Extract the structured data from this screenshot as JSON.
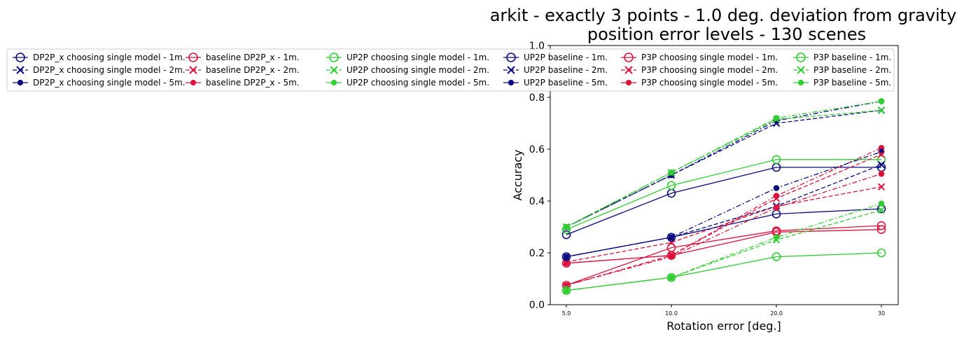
{
  "chart_data": {
    "type": "line",
    "title_line1": "arkit - exactly 3 points - 1.0 deg. deviation from gravity",
    "title_line2": "position error levels - 130 scenes",
    "xlabel": "Rotation error [deg.]",
    "ylabel": "Accuracy",
    "categories": [
      "5.0",
      "10.0",
      "20.0",
      "30"
    ],
    "ylim": [
      0.0,
      1.0
    ],
    "yticks": [
      "0.0",
      "0.2",
      "0.4",
      "0.6",
      "0.8",
      "1.0"
    ],
    "grid": false,
    "legend_position": "upper center, above axes, 6 columns",
    "colors": {
      "navy": "#0b0b80",
      "crimson": "#dc143c",
      "limegreen": "#32cd32"
    },
    "series": [
      {
        "name": "DP2P_x choosing single model - 1m.",
        "color": "#0b0b80",
        "marker": "circle",
        "dash": "solid",
        "values": [
          0.27,
          0.43,
          0.53,
          0.53
        ]
      },
      {
        "name": "DP2P_x choosing single model - 2m.",
        "color": "#0b0b80",
        "marker": "x",
        "dash": "dashed",
        "values": [
          0.3,
          0.5,
          0.7,
          0.75
        ]
      },
      {
        "name": "DP2P_x choosing single model - 5m.",
        "color": "#0b0b80",
        "marker": "dot",
        "dash": "dashdot",
        "values": [
          0.3,
          0.5,
          0.71,
          0.785
        ]
      },
      {
        "name": "baseline DP2P_x - 1m.",
        "color": "#dc143c",
        "marker": "circle",
        "dash": "solid",
        "values": [
          0.16,
          0.19,
          0.28,
          0.29
        ]
      },
      {
        "name": "baseline DP2P_x - 2m.",
        "color": "#dc143c",
        "marker": "x",
        "dash": "dashed",
        "values": [
          0.165,
          0.24,
          0.38,
          0.455
        ]
      },
      {
        "name": "baseline DP2P_x - 5m.",
        "color": "#dc143c",
        "marker": "dot",
        "dash": "dashdot",
        "values": [
          0.16,
          0.19,
          0.42,
          0.605
        ]
      },
      {
        "name": "UP2P choosing single model - 1m.",
        "color": "#32cd32",
        "marker": "circle",
        "dash": "solid",
        "values": [
          0.29,
          0.46,
          0.56,
          0.56
        ]
      },
      {
        "name": "UP2P choosing single model - 2m.",
        "color": "#32cd32",
        "marker": "x",
        "dash": "dashed",
        "values": [
          0.3,
          0.51,
          0.715,
          0.75
        ]
      },
      {
        "name": "UP2P choosing single model - 5m.",
        "color": "#32cd32",
        "marker": "dot",
        "dash": "dashdot",
        "values": [
          0.3,
          0.51,
          0.72,
          0.785
        ]
      },
      {
        "name": "UP2P baseline - 1m.",
        "color": "#0b0b80",
        "marker": "circle",
        "dash": "solid",
        "values": [
          0.185,
          0.26,
          0.35,
          0.37
        ]
      },
      {
        "name": "UP2P baseline - 2m.",
        "color": "#0b0b80",
        "marker": "x",
        "dash": "dashed",
        "values": [
          0.185,
          0.26,
          0.38,
          0.54
        ]
      },
      {
        "name": "UP2P baseline - 5m.",
        "color": "#0b0b80",
        "marker": "dot",
        "dash": "dashdot",
        "values": [
          0.185,
          0.26,
          0.45,
          0.59
        ]
      },
      {
        "name": "P3P choosing single model - 1m.",
        "color": "#dc143c",
        "marker": "circle",
        "dash": "solid",
        "values": [
          0.075,
          0.22,
          0.285,
          0.305
        ]
      },
      {
        "name": "P3P choosing single model - 2m.",
        "color": "#dc143c",
        "marker": "x",
        "dash": "dashed",
        "values": [
          0.075,
          0.19,
          0.41,
          0.58
        ]
      },
      {
        "name": "P3P choosing single model - 5m.",
        "color": "#dc143c",
        "marker": "dot",
        "dash": "dashdot",
        "values": [
          0.075,
          0.185,
          0.375,
          0.505
        ]
      },
      {
        "name": "P3P baseline - 1m.",
        "color": "#32cd32",
        "marker": "circle",
        "dash": "solid",
        "values": [
          0.055,
          0.105,
          0.185,
          0.2
        ]
      },
      {
        "name": "P3P baseline - 2m.",
        "color": "#32cd32",
        "marker": "x",
        "dash": "dashed",
        "values": [
          0.055,
          0.105,
          0.25,
          0.365
        ]
      },
      {
        "name": "P3P baseline - 5m.",
        "color": "#32cd32",
        "marker": "dot",
        "dash": "dashdot",
        "values": [
          0.055,
          0.105,
          0.26,
          0.39
        ]
      }
    ]
  }
}
